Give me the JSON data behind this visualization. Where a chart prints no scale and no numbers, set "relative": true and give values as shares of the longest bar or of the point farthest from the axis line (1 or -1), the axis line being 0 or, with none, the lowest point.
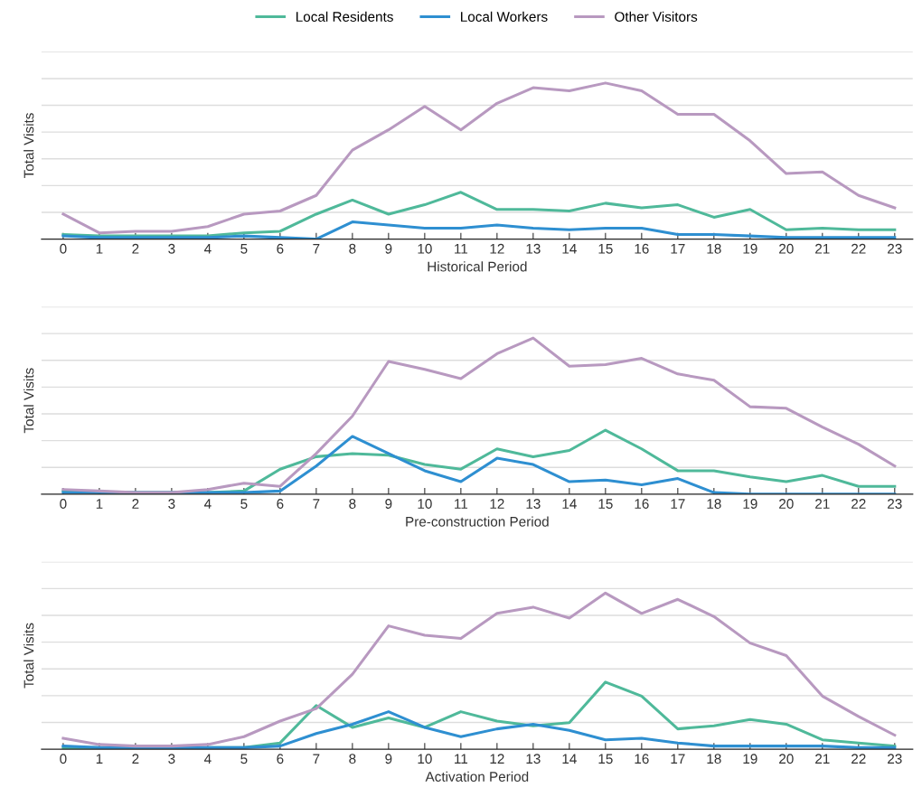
{
  "chart_data": [
    {
      "type": "line",
      "relative": true,
      "xlabel": "Historical Period",
      "ylabel": "Total Visits",
      "grid": "y",
      "legend": "top",
      "marker": "none",
      "line_style": "solid",
      "categories": [
        "0",
        "1",
        "2",
        "3",
        "4",
        "5",
        "6",
        "7",
        "8",
        "9",
        "10",
        "11",
        "12",
        "13",
        "14",
        "15",
        "16",
        "17",
        "18",
        "19",
        "20",
        "21",
        "22",
        "23"
      ],
      "series": [
        {
          "name": "Local Residents",
          "color": "#4fb99a",
          "values": [
            0.03,
            0.02,
            0.02,
            0.02,
            0.02,
            0.04,
            0.05,
            0.16,
            0.25,
            0.16,
            0.22,
            0.3,
            0.19,
            0.19,
            0.18,
            0.23,
            0.2,
            0.22,
            0.14,
            0.19,
            0.06,
            0.07,
            0.06,
            0.06
          ]
        },
        {
          "name": "Local Workers",
          "color": "#2e8fd1",
          "values": [
            0.02,
            0.01,
            0.01,
            0.01,
            0.01,
            0.02,
            0.01,
            0.0,
            0.11,
            0.09,
            0.07,
            0.07,
            0.09,
            0.07,
            0.06,
            0.07,
            0.07,
            0.03,
            0.03,
            0.02,
            0.01,
            0.01,
            0.01,
            0.01
          ]
        },
        {
          "name": "Other Visitors",
          "color": "#b899c0",
          "values": [
            0.16,
            0.04,
            0.05,
            0.05,
            0.08,
            0.16,
            0.18,
            0.28,
            0.57,
            0.7,
            0.85,
            0.7,
            0.87,
            0.97,
            0.95,
            1.0,
            0.95,
            0.8,
            0.8,
            0.63,
            0.42,
            0.43,
            0.28,
            0.2
          ]
        }
      ]
    },
    {
      "type": "line",
      "relative": true,
      "xlabel": "Pre-construction Period",
      "ylabel": "Total Visits",
      "grid": "y",
      "marker": "none",
      "line_style": "solid",
      "categories": [
        "0",
        "1",
        "2",
        "3",
        "4",
        "5",
        "6",
        "7",
        "8",
        "9",
        "10",
        "11",
        "12",
        "13",
        "14",
        "15",
        "16",
        "17",
        "18",
        "19",
        "20",
        "21",
        "22",
        "23"
      ],
      "series": [
        {
          "color": "#4fb99a",
          "values": [
            0.02,
            0.01,
            0.01,
            0.01,
            0.01,
            0.02,
            0.16,
            0.24,
            0.26,
            0.25,
            0.19,
            0.16,
            0.29,
            0.24,
            0.28,
            0.41,
            0.29,
            0.15,
            0.15,
            0.11,
            0.08,
            0.12,
            0.05,
            0.05
          ]
        },
        {
          "color": "#2e8fd1",
          "values": [
            0.01,
            0.01,
            0.01,
            0.01,
            0.01,
            0.01,
            0.02,
            0.18,
            0.37,
            0.26,
            0.15,
            0.08,
            0.23,
            0.19,
            0.08,
            0.09,
            0.06,
            0.1,
            0.01,
            0.0,
            0.0,
            0.0,
            0.0,
            0.0
          ]
        },
        {
          "color": "#b899c0",
          "values": [
            0.03,
            0.02,
            0.01,
            0.01,
            0.03,
            0.07,
            0.05,
            0.26,
            0.5,
            0.85,
            0.8,
            0.74,
            0.9,
            1.0,
            0.82,
            0.83,
            0.87,
            0.77,
            0.73,
            0.56,
            0.55,
            0.43,
            0.32,
            0.18
          ]
        }
      ]
    },
    {
      "type": "line",
      "relative": true,
      "xlabel": "Activation Period",
      "ylabel": "Total Visits",
      "grid": "y",
      "marker": "none",
      "line_style": "solid",
      "categories": [
        "0",
        "1",
        "2",
        "3",
        "4",
        "5",
        "6",
        "7",
        "8",
        "9",
        "10",
        "11",
        "12",
        "13",
        "14",
        "15",
        "16",
        "17",
        "18",
        "19",
        "20",
        "21",
        "22",
        "23"
      ],
      "series": [
        {
          "color": "#4fb99a",
          "values": [
            0.01,
            0.01,
            0.01,
            0.01,
            0.01,
            0.01,
            0.04,
            0.28,
            0.14,
            0.2,
            0.14,
            0.24,
            0.18,
            0.15,
            0.17,
            0.43,
            0.34,
            0.13,
            0.15,
            0.19,
            0.16,
            0.06,
            0.04,
            0.02
          ]
        },
        {
          "color": "#2e8fd1",
          "values": [
            0.02,
            0.01,
            0.01,
            0.01,
            0.01,
            0.01,
            0.02,
            0.1,
            0.16,
            0.24,
            0.14,
            0.08,
            0.13,
            0.16,
            0.12,
            0.06,
            0.07,
            0.04,
            0.02,
            0.02,
            0.02,
            0.02,
            0.01,
            0.01
          ]
        },
        {
          "color": "#b899c0",
          "values": [
            0.07,
            0.03,
            0.02,
            0.02,
            0.03,
            0.08,
            0.18,
            0.26,
            0.48,
            0.79,
            0.73,
            0.71,
            0.87,
            0.91,
            0.84,
            1.0,
            0.87,
            0.96,
            0.85,
            0.68,
            0.6,
            0.34,
            0.21,
            0.09
          ]
        }
      ]
    }
  ]
}
